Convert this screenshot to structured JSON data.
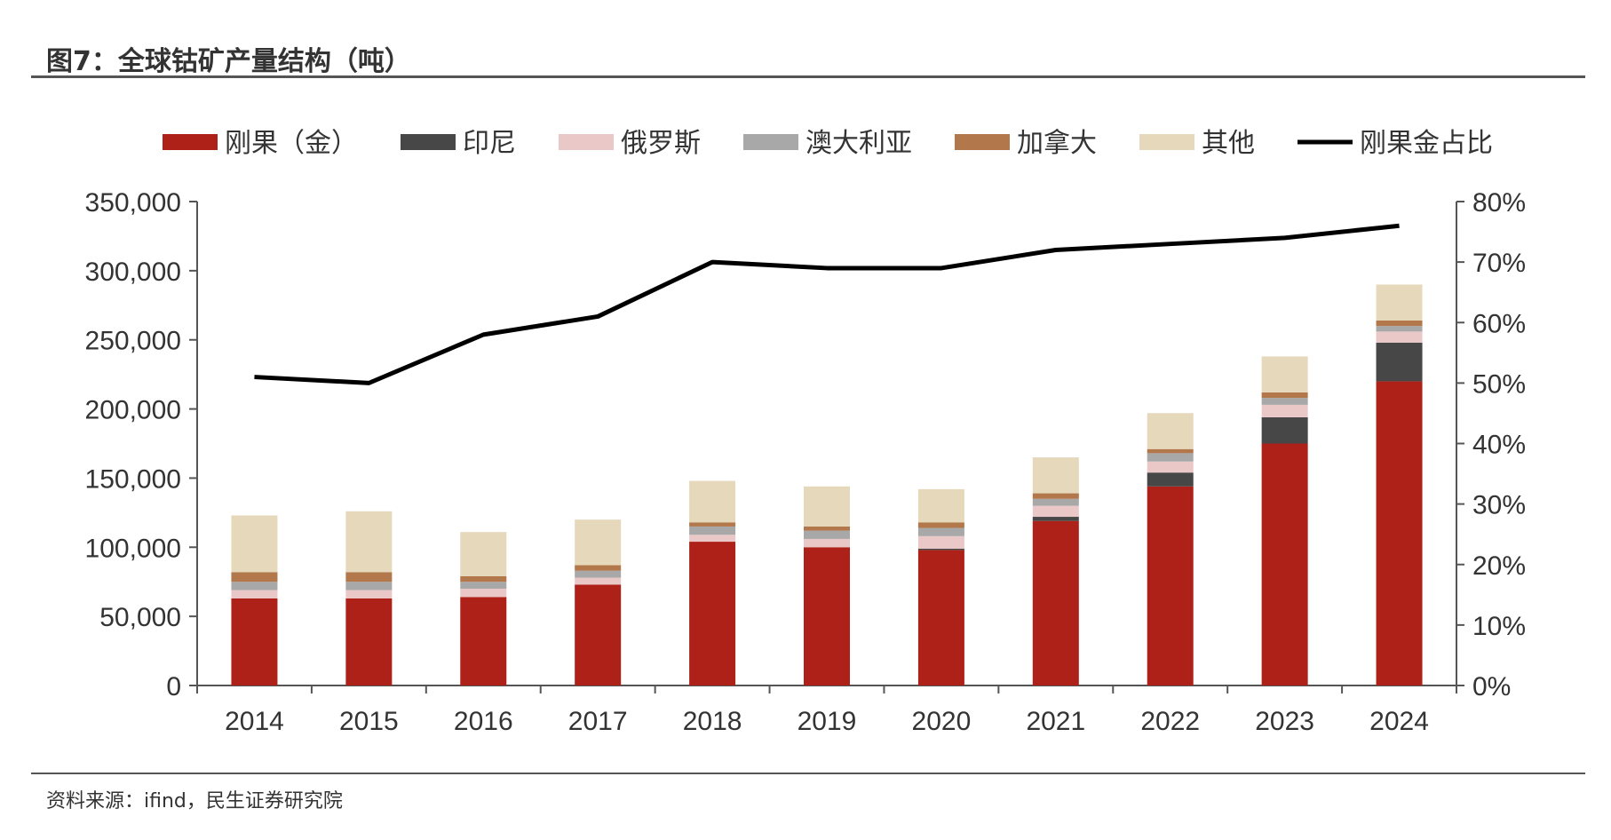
{
  "title": "图7：全球钴矿产量结构（吨）",
  "source": "资料来源：ifind，民生证券研究院",
  "colors": {
    "刚果（金）": "#ad2118",
    "印尼": "#474747",
    "俄罗斯": "#ebc8c8",
    "澳大利亚": "#a8a8a8",
    "加拿大": "#b2784b",
    "其他": "#e6d8bb",
    "line": "#000000",
    "axis": "#555555"
  },
  "chart_data": {
    "type": "bar",
    "stacked": true,
    "categories": [
      "2014",
      "2015",
      "2016",
      "2017",
      "2018",
      "2019",
      "2020",
      "2021",
      "2022",
      "2023",
      "2024"
    ],
    "series": [
      {
        "name": "刚果（金）",
        "values": [
          63000,
          63000,
          64000,
          73000,
          104000,
          100000,
          98000,
          119000,
          144000,
          175000,
          220000
        ]
      },
      {
        "name": "印尼",
        "values": [
          0,
          0,
          0,
          0,
          0,
          0,
          1000,
          3000,
          10000,
          19000,
          28000
        ]
      },
      {
        "name": "俄罗斯",
        "values": [
          6000,
          6000,
          6000,
          5000,
          5000,
          6000,
          9000,
          8000,
          8000,
          9000,
          8000
        ]
      },
      {
        "name": "澳大利亚",
        "values": [
          6000,
          6000,
          5000,
          5000,
          6000,
          6000,
          6000,
          5000,
          6000,
          5000,
          4000
        ]
      },
      {
        "name": "加拿大",
        "values": [
          7000,
          7000,
          4000,
          4000,
          3000,
          3000,
          4000,
          4000,
          3000,
          4000,
          4000
        ]
      },
      {
        "name": "其他",
        "values": [
          41000,
          44000,
          32000,
          33000,
          30000,
          29000,
          24000,
          26000,
          26000,
          26000,
          26000
        ]
      }
    ],
    "line": {
      "name": "刚果金占比",
      "axis": "right",
      "values": [
        51,
        50,
        58,
        61,
        70,
        69,
        69,
        72,
        73,
        74,
        76
      ]
    },
    "left_axis": {
      "ylim": [
        0,
        350000
      ],
      "ticks": [
        "0",
        "50,000",
        "100,000",
        "150,000",
        "200,000",
        "250,000",
        "300,000",
        "350,000"
      ]
    },
    "right_axis": {
      "ylim": [
        0,
        80
      ],
      "ticks": [
        "0%",
        "10%",
        "20%",
        "30%",
        "40%",
        "50%",
        "60%",
        "70%",
        "80%"
      ]
    },
    "legend": {
      "position": "top",
      "entries": [
        "刚果（金）",
        "印尼",
        "俄罗斯",
        "澳大利亚",
        "加拿大",
        "其他",
        "刚果金占比"
      ]
    }
  }
}
